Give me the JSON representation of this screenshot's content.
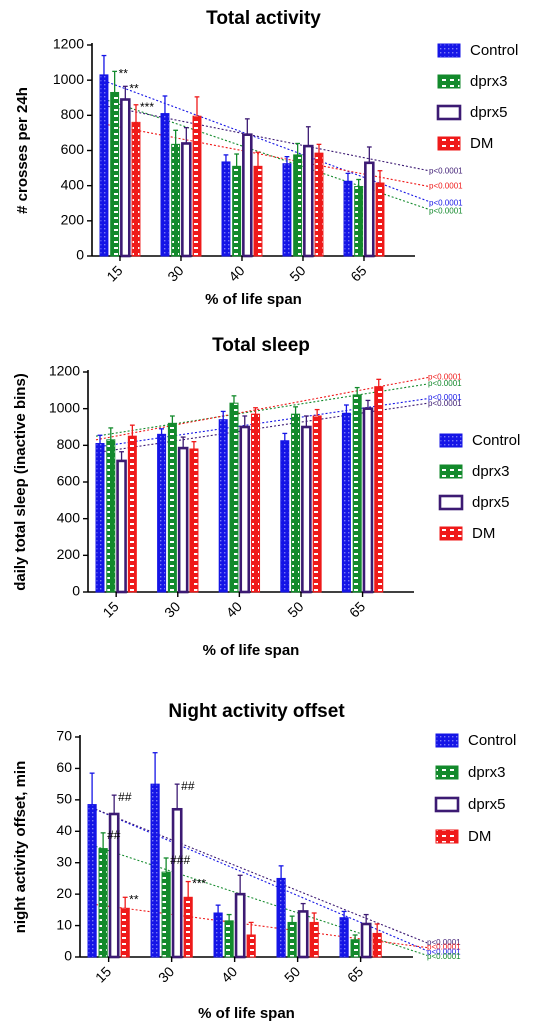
{
  "series_colors": {
    "Control": "#1515e6",
    "dprx3": "#138a2c",
    "dprx5": "#3c1a73",
    "DM": "#ef1a1a"
  },
  "chart_data": [
    {
      "type": "bar",
      "title": "Total activity",
      "xlabel": "% of life span",
      "ylabel": "# crosses per 24h",
      "categories": [
        "15",
        "30",
        "40",
        "50",
        "65"
      ],
      "ylim": [
        0,
        1200
      ],
      "yticks": [
        "0",
        "200",
        "400",
        "600",
        "800",
        "1000",
        "1200"
      ],
      "legend_position": "right",
      "series": [
        {
          "name": "Control",
          "values": [
            1030,
            810,
            535,
            525,
            425
          ],
          "errors": [
            110,
            100,
            40,
            40,
            45
          ]
        },
        {
          "name": "dprx3",
          "values": [
            930,
            635,
            510,
            575,
            395
          ],
          "errors": [
            120,
            80,
            70,
            65,
            40
          ]
        },
        {
          "name": "dprx5",
          "values": [
            890,
            640,
            690,
            625,
            530
          ],
          "errors": [
            75,
            90,
            90,
            110,
            90
          ]
        },
        {
          "name": "DM",
          "values": [
            760,
            795,
            510,
            585,
            415
          ],
          "errors": [
            100,
            110,
            80,
            50,
            70
          ]
        }
      ],
      "annotations": [
        {
          "text": "**",
          "category": "15",
          "series": "dprx3"
        },
        {
          "text": "**",
          "category": "15",
          "series": "dprx5"
        },
        {
          "text": "***",
          "category": "15",
          "series": "DM"
        }
      ],
      "trend_pvalues": [
        {
          "series": "dprx5",
          "text": "p<0.0001",
          "y": 480
        },
        {
          "series": "DM",
          "text": "p<0.0001",
          "y": 395
        },
        {
          "series": "Control",
          "text": "p<0.0001",
          "y": 300
        },
        {
          "series": "dprx3",
          "text": "p<0.0001",
          "y": 255
        }
      ],
      "trend_lines": [
        {
          "series": "Control",
          "y_start": 1005,
          "y_end": 310
        },
        {
          "series": "dprx3",
          "y_start": 900,
          "y_end": 265
        },
        {
          "series": "dprx5",
          "y_start": 860,
          "y_end": 485
        },
        {
          "series": "DM",
          "y_start": 755,
          "y_end": 395
        }
      ]
    },
    {
      "type": "bar",
      "title": "Total sleep",
      "xlabel": "% of life span",
      "ylabel": "daily total sleep (inactive bins)",
      "categories": [
        "15",
        "30",
        "40",
        "50",
        "65"
      ],
      "ylim": [
        0,
        1200
      ],
      "yticks": [
        "0",
        "200",
        "400",
        "600",
        "800",
        "1000",
        "1200"
      ],
      "legend_position": "right",
      "series": [
        {
          "name": "Control",
          "values": [
            810,
            860,
            940,
            825,
            975
          ],
          "errors": [
            45,
            30,
            45,
            40,
            45
          ]
        },
        {
          "name": "dprx3",
          "values": [
            830,
            920,
            1030,
            970,
            1075
          ],
          "errors": [
            65,
            40,
            40,
            40,
            40
          ]
        },
        {
          "name": "dprx5",
          "values": [
            715,
            785,
            900,
            900,
            1000
          ],
          "errors": [
            50,
            60,
            60,
            60,
            45
          ]
        },
        {
          "name": "DM",
          "values": [
            850,
            780,
            970,
            960,
            1120
          ],
          "errors": [
            60,
            40,
            35,
            35,
            40
          ]
        }
      ],
      "trend_pvalues": [
        {
          "series": "DM",
          "text": "p<0.0001",
          "y": 1170
        },
        {
          "series": "dprx3",
          "text": "p<0.0001",
          "y": 1135
        },
        {
          "series": "Control",
          "text": "p<0.0001",
          "y": 1060
        },
        {
          "series": "dprx5",
          "text": "p<0.0001",
          "y": 1025
        }
      ],
      "trend_lines": [
        {
          "series": "Control",
          "y_start": 790,
          "y_end": 1055
        },
        {
          "series": "dprx3",
          "y_start": 850,
          "y_end": 1135
        },
        {
          "series": "dprx5",
          "y_start": 760,
          "y_end": 1030
        },
        {
          "series": "DM",
          "y_start": 830,
          "y_end": 1170
        }
      ]
    },
    {
      "type": "bar",
      "title": "Night activity offset",
      "xlabel": "% of life span",
      "ylabel": "night activity offset, min",
      "categories": [
        "15",
        "30",
        "40",
        "50",
        "65"
      ],
      "ylim": [
        0,
        70
      ],
      "yticks": [
        "0",
        "10",
        "20",
        "30",
        "40",
        "50",
        "60",
        "70"
      ],
      "legend_position": "right",
      "series": [
        {
          "name": "Control",
          "values": [
            48.5,
            55,
            14,
            25,
            12.5
          ],
          "errors": [
            10,
            10,
            2.5,
            4,
            2
          ]
        },
        {
          "name": "dprx3",
          "values": [
            34.5,
            27,
            11.5,
            11,
            5.5
          ],
          "errors": [
            5,
            4.5,
            2,
            2,
            1.5
          ]
        },
        {
          "name": "dprx5",
          "values": [
            45.5,
            47,
            20,
            14.5,
            10.5
          ],
          "errors": [
            6,
            8,
            6,
            2.5,
            3
          ]
        },
        {
          "name": "DM",
          "values": [
            15.5,
            19,
            7,
            11,
            7.5
          ],
          "errors": [
            3.5,
            5,
            4,
            3,
            3
          ]
        }
      ],
      "annotations": [
        {
          "text": "##",
          "category": "15",
          "series": "dprx3"
        },
        {
          "text": "##",
          "category": "15",
          "series": "dprx5"
        },
        {
          "text": "**",
          "category": "15",
          "series": "DM"
        },
        {
          "text": "###",
          "category": "30",
          "series": "dprx3"
        },
        {
          "text": "##",
          "category": "30",
          "series": "dprx5"
        },
        {
          "text": "***",
          "category": "30",
          "series": "DM"
        }
      ],
      "trend_pvalues": [
        {
          "series": "dprx5",
          "text": "p<0.0001",
          "y": 4.5
        },
        {
          "series": "DM",
          "text": "p<0.0001",
          "y": 3
        },
        {
          "series": "Control",
          "text": "p<0.0001",
          "y": 1.5
        },
        {
          "series": "dprx3",
          "text": "p<0.0001",
          "y": 0
        }
      ],
      "trend_lines": [
        {
          "series": "Control",
          "y_start": 48,
          "y_end": 2
        },
        {
          "series": "dprx3",
          "y_start": 36,
          "y_end": 0.5
        },
        {
          "series": "dprx5",
          "y_start": 48,
          "y_end": 4.5
        },
        {
          "series": "DM",
          "y_start": 17,
          "y_end": 3
        }
      ]
    }
  ]
}
